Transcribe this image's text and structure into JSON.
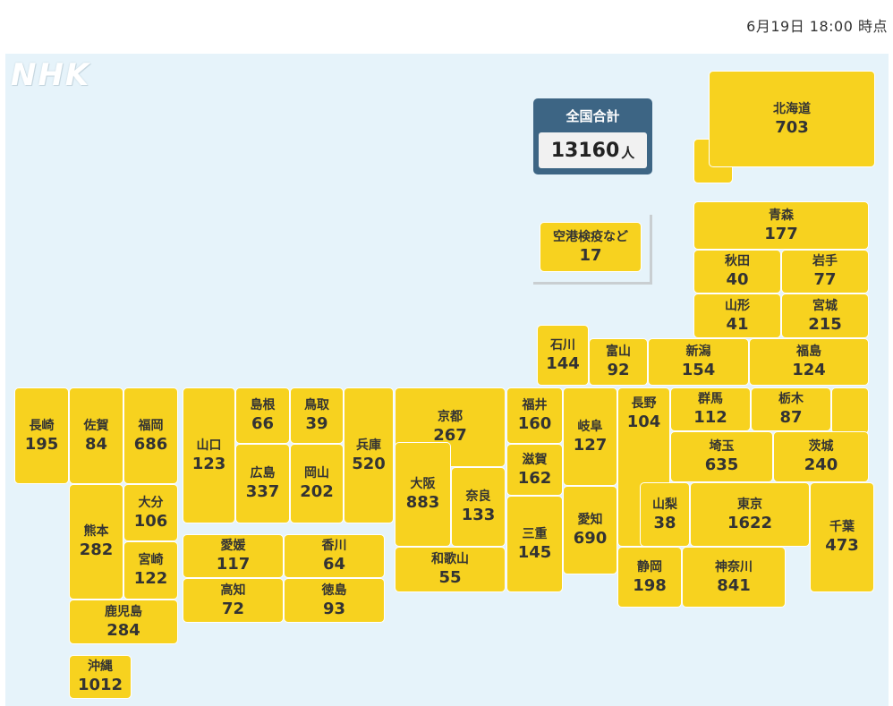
{
  "header": {
    "timestamp": "6月19日 18:00 時点"
  },
  "logo": {
    "text": "NHK"
  },
  "total": {
    "label": "全国合計",
    "value": "13160",
    "unit": "人"
  },
  "airport": {
    "name": "空港検疫など",
    "count": "17"
  },
  "prefectures": [
    {
      "name": "北海道",
      "count": "703"
    },
    {
      "name": "青森",
      "count": "177"
    },
    {
      "name": "秋田",
      "count": "40"
    },
    {
      "name": "岩手",
      "count": "77"
    },
    {
      "name": "山形",
      "count": "41"
    },
    {
      "name": "宮城",
      "count": "215"
    },
    {
      "name": "石川",
      "count": "144"
    },
    {
      "name": "富山",
      "count": "92"
    },
    {
      "name": "新潟",
      "count": "154"
    },
    {
      "name": "福島",
      "count": "124"
    },
    {
      "name": "長崎",
      "count": "195"
    },
    {
      "name": "佐賀",
      "count": "84"
    },
    {
      "name": "福岡",
      "count": "686"
    },
    {
      "name": "山口",
      "count": "123"
    },
    {
      "name": "島根",
      "count": "66"
    },
    {
      "name": "鳥取",
      "count": "39"
    },
    {
      "name": "兵庫",
      "count": "520"
    },
    {
      "name": "京都",
      "count": "267"
    },
    {
      "name": "福井",
      "count": "160"
    },
    {
      "name": "岐阜",
      "count": "127"
    },
    {
      "name": "長野",
      "count": "104"
    },
    {
      "name": "群馬",
      "count": "112"
    },
    {
      "name": "栃木",
      "count": "87"
    },
    {
      "name": "広島",
      "count": "337"
    },
    {
      "name": "岡山",
      "count": "202"
    },
    {
      "name": "大阪",
      "count": "883"
    },
    {
      "name": "滋賀",
      "count": "162"
    },
    {
      "name": "埼玉",
      "count": "635"
    },
    {
      "name": "茨城",
      "count": "240"
    },
    {
      "name": "熊本",
      "count": "282"
    },
    {
      "name": "大分",
      "count": "106"
    },
    {
      "name": "宮崎",
      "count": "122"
    },
    {
      "name": "奈良",
      "count": "133"
    },
    {
      "name": "三重",
      "count": "145"
    },
    {
      "name": "愛知",
      "count": "690"
    },
    {
      "name": "山梨",
      "count": "38"
    },
    {
      "name": "東京",
      "count": "1622"
    },
    {
      "name": "千葉",
      "count": "473"
    },
    {
      "name": "愛媛",
      "count": "117"
    },
    {
      "name": "香川",
      "count": "64"
    },
    {
      "name": "高知",
      "count": "72"
    },
    {
      "name": "徳島",
      "count": "93"
    },
    {
      "name": "和歌山",
      "count": "55"
    },
    {
      "name": "静岡",
      "count": "198"
    },
    {
      "name": "神奈川",
      "count": "841"
    },
    {
      "name": "鹿児島",
      "count": "284"
    },
    {
      "name": "沖縄",
      "count": "1012"
    }
  ]
}
